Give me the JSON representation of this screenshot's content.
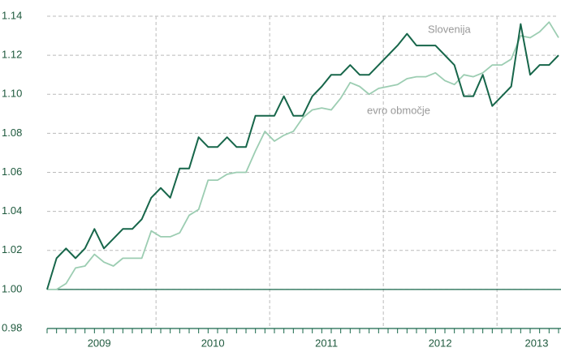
{
  "chart_data": {
    "type": "line",
    "categories": [
      null,
      null,
      null,
      null,
      null,
      null,
      null,
      null,
      null,
      null,
      null,
      null,
      null,
      null,
      null,
      null,
      null,
      null,
      null,
      null,
      null,
      null,
      null,
      null,
      null,
      null,
      null,
      null,
      null,
      null,
      null,
      null,
      null,
      null,
      null,
      null,
      null,
      null,
      null,
      null,
      null,
      null,
      null,
      null,
      null,
      null,
      null,
      null,
      null,
      null,
      null,
      null,
      null,
      null,
      null
    ],
    "year_labels": [
      "2009",
      "2010",
      "2011",
      "2012",
      "2013"
    ],
    "series": [
      {
        "name": "Slovenija",
        "color": "#17664a",
        "values": [
          1.0,
          1.016,
          1.021,
          1.016,
          1.021,
          1.031,
          1.021,
          1.026,
          1.031,
          1.031,
          1.036,
          1.047,
          1.052,
          1.047,
          1.062,
          1.062,
          1.078,
          1.073,
          1.073,
          1.078,
          1.073,
          1.073,
          1.089,
          1.089,
          1.089,
          1.099,
          1.089,
          1.089,
          1.099,
          1.104,
          1.11,
          1.11,
          1.115,
          1.11,
          1.11,
          1.115,
          1.12,
          1.125,
          1.131,
          1.125,
          1.125,
          1.125,
          1.12,
          1.115,
          1.099,
          1.099,
          1.11,
          1.094,
          1.099,
          1.104,
          1.136,
          1.11,
          1.115,
          1.115,
          1.12
        ]
      },
      {
        "name": "evro območje",
        "color": "#9ccdb2",
        "values": [
          1.0,
          1.0,
          1.003,
          1.011,
          1.012,
          1.018,
          1.014,
          1.012,
          1.016,
          1.016,
          1.016,
          1.03,
          1.027,
          1.027,
          1.029,
          1.038,
          1.041,
          1.056,
          1.056,
          1.059,
          1.06,
          1.06,
          1.071,
          1.081,
          1.076,
          1.079,
          1.081,
          1.088,
          1.092,
          1.093,
          1.092,
          1.098,
          1.106,
          1.104,
          1.1,
          1.103,
          1.104,
          1.105,
          1.108,
          1.109,
          1.109,
          1.111,
          1.107,
          1.105,
          1.11,
          1.109,
          1.111,
          1.115,
          1.115,
          1.118,
          1.13,
          1.129,
          1.132,
          1.137,
          1.129
        ]
      }
    ],
    "ylim": [
      0.98,
      1.14
    ],
    "yticks": [
      0.98,
      {
        "value": 1,
        "label": "1.00"
      },
      1.02,
      1.04,
      1.06,
      1.08,
      {
        "value": 1.1,
        "label": "1.10"
      },
      1.12,
      1.14
    ],
    "grid": true
  }
}
